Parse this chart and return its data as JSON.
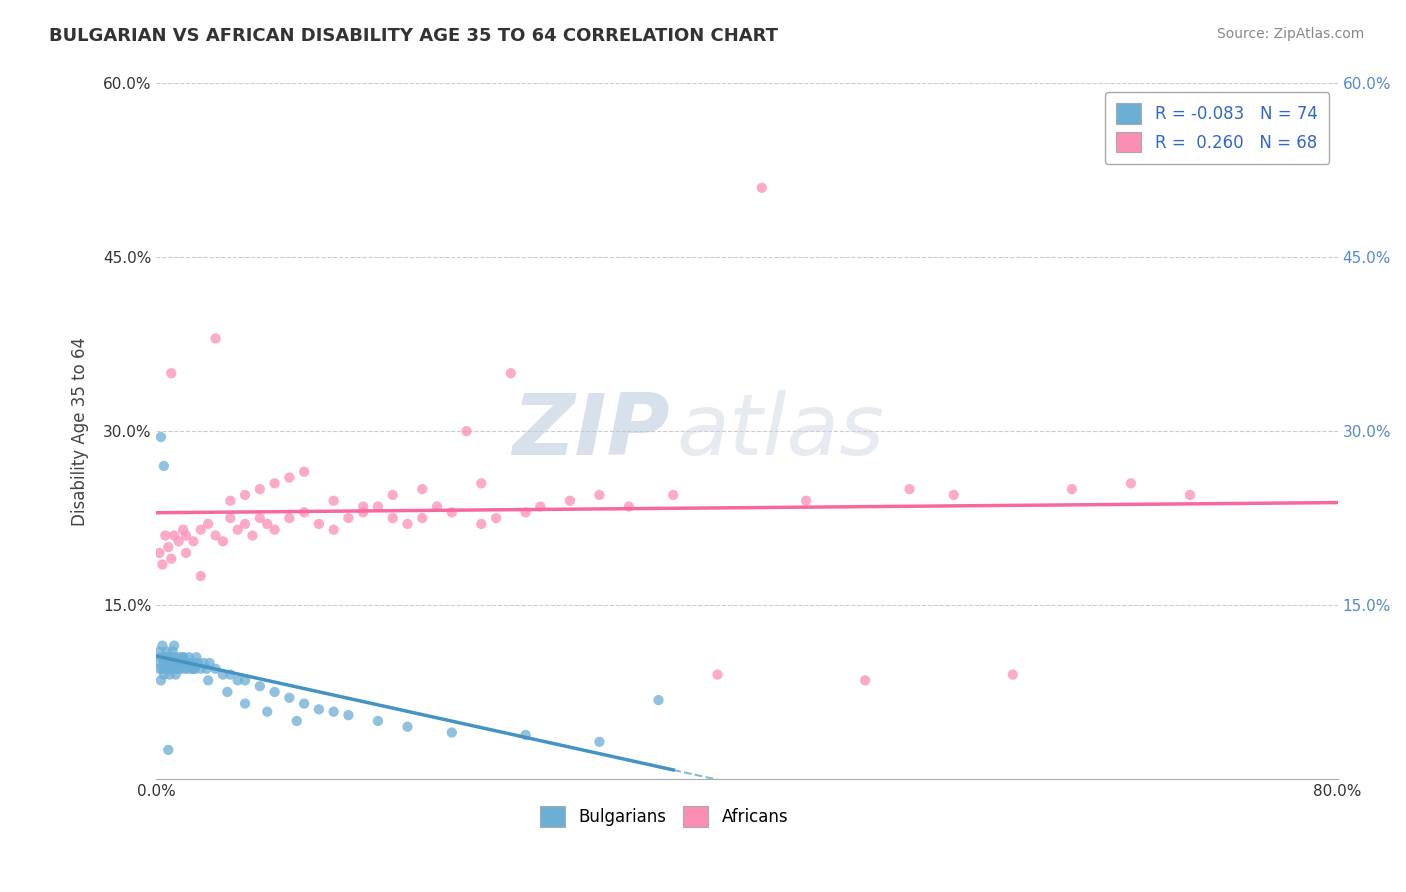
{
  "title": "BULGARIAN VS AFRICAN DISABILITY AGE 35 TO 64 CORRELATION CHART",
  "source": "Source: ZipAtlas.com",
  "ylabel": "Disability Age 35 to 64",
  "xlim": [
    0.0,
    0.8
  ],
  "ylim": [
    0.0,
    0.6
  ],
  "bulgarians_R": -0.083,
  "bulgarians_N": 74,
  "africans_R": 0.26,
  "africans_N": 68,
  "watermark_zip": "ZIP",
  "watermark_atlas": "atlas",
  "legend_labels": [
    "Bulgarians",
    "Africans"
  ],
  "blue_scatter_color": "#6baed6",
  "pink_scatter_color": "#fc8eb5",
  "blue_line_color": "#4393c3",
  "pink_line_color": "#f768a1",
  "background_color": "#ffffff",
  "grid_color": "#cccccc",
  "bulgarians_x": [
    0.001,
    0.002,
    0.002,
    0.003,
    0.003,
    0.004,
    0.004,
    0.005,
    0.005,
    0.006,
    0.006,
    0.007,
    0.007,
    0.008,
    0.008,
    0.009,
    0.009,
    0.01,
    0.01,
    0.011,
    0.011,
    0.012,
    0.012,
    0.013,
    0.013,
    0.014,
    0.015,
    0.015,
    0.016,
    0.017,
    0.018,
    0.019,
    0.02,
    0.021,
    0.022,
    0.023,
    0.024,
    0.025,
    0.026,
    0.027,
    0.028,
    0.03,
    0.032,
    0.034,
    0.036,
    0.04,
    0.045,
    0.05,
    0.055,
    0.06,
    0.07,
    0.08,
    0.09,
    0.1,
    0.11,
    0.12,
    0.13,
    0.15,
    0.17,
    0.2,
    0.25,
    0.3,
    0.003,
    0.005,
    0.008,
    0.012,
    0.018,
    0.025,
    0.035,
    0.048,
    0.06,
    0.075,
    0.095,
    0.34
  ],
  "bulgarians_y": [
    0.1,
    0.095,
    0.11,
    0.085,
    0.105,
    0.095,
    0.115,
    0.09,
    0.1,
    0.105,
    0.095,
    0.1,
    0.11,
    0.095,
    0.105,
    0.09,
    0.1,
    0.105,
    0.095,
    0.11,
    0.1,
    0.095,
    0.105,
    0.09,
    0.1,
    0.095,
    0.105,
    0.1,
    0.095,
    0.1,
    0.105,
    0.095,
    0.1,
    0.095,
    0.105,
    0.1,
    0.095,
    0.1,
    0.095,
    0.105,
    0.1,
    0.095,
    0.1,
    0.095,
    0.1,
    0.095,
    0.09,
    0.09,
    0.085,
    0.085,
    0.08,
    0.075,
    0.07,
    0.065,
    0.06,
    0.058,
    0.055,
    0.05,
    0.045,
    0.04,
    0.038,
    0.032,
    0.295,
    0.27,
    0.025,
    0.115,
    0.105,
    0.095,
    0.085,
    0.075,
    0.065,
    0.058,
    0.05,
    0.068
  ],
  "africans_x": [
    0.002,
    0.004,
    0.006,
    0.008,
    0.01,
    0.012,
    0.015,
    0.018,
    0.02,
    0.025,
    0.03,
    0.035,
    0.04,
    0.045,
    0.05,
    0.055,
    0.06,
    0.065,
    0.07,
    0.075,
    0.08,
    0.09,
    0.1,
    0.11,
    0.12,
    0.13,
    0.14,
    0.15,
    0.16,
    0.17,
    0.18,
    0.19,
    0.2,
    0.21,
    0.22,
    0.23,
    0.24,
    0.26,
    0.28,
    0.3,
    0.32,
    0.35,
    0.38,
    0.41,
    0.44,
    0.48,
    0.51,
    0.54,
    0.58,
    0.62,
    0.66,
    0.7,
    0.01,
    0.02,
    0.03,
    0.04,
    0.05,
    0.06,
    0.07,
    0.08,
    0.09,
    0.1,
    0.12,
    0.14,
    0.16,
    0.18,
    0.22,
    0.25
  ],
  "africans_y": [
    0.195,
    0.185,
    0.21,
    0.2,
    0.19,
    0.21,
    0.205,
    0.215,
    0.195,
    0.205,
    0.215,
    0.22,
    0.21,
    0.205,
    0.225,
    0.215,
    0.22,
    0.21,
    0.225,
    0.22,
    0.215,
    0.225,
    0.23,
    0.22,
    0.215,
    0.225,
    0.23,
    0.235,
    0.225,
    0.22,
    0.225,
    0.235,
    0.23,
    0.3,
    0.22,
    0.225,
    0.35,
    0.235,
    0.24,
    0.245,
    0.235,
    0.245,
    0.09,
    0.51,
    0.24,
    0.085,
    0.25,
    0.245,
    0.09,
    0.25,
    0.255,
    0.245,
    0.35,
    0.21,
    0.175,
    0.38,
    0.24,
    0.245,
    0.25,
    0.255,
    0.26,
    0.265,
    0.24,
    0.235,
    0.245,
    0.25,
    0.255,
    0.23
  ]
}
